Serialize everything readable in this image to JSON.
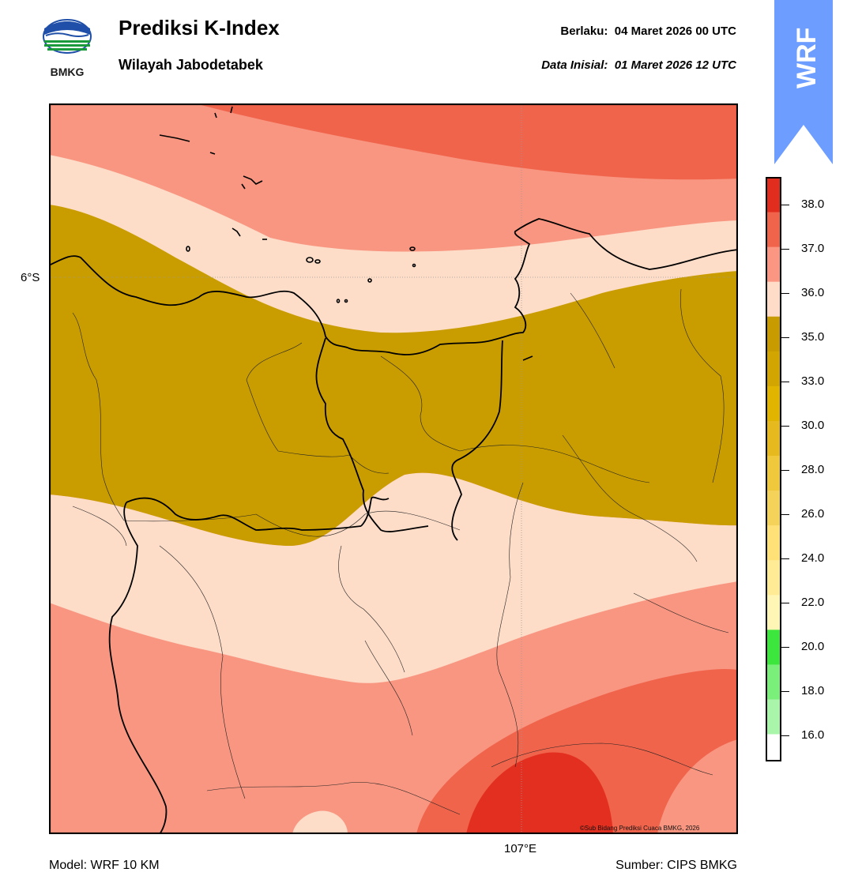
{
  "header": {
    "title": "Prediksi K-Index",
    "subtitle": "Wilayah Jabodetabek",
    "valid_label": "Berlaku:",
    "valid_value": "04 Maret 2026 00 UTC",
    "init_label": "Data Inisial:",
    "init_value": "01 Maret 2026 12 UTC"
  },
  "logo": {
    "icon": "bmkg-logo-icon",
    "text": "BMKG"
  },
  "ribbon": {
    "text": "WRF",
    "color": "#6d9dff"
  },
  "map": {
    "lat_label": "6°S",
    "lon_label": "107°E",
    "credit": "©Sub Bidang Prediksi Cuaca BMKG, 2026"
  },
  "footer": {
    "model": "Model: WRF 10 KM",
    "source": "Sumber: CIPS BMKG"
  },
  "colorbar": {
    "ticks": [
      "16.0",
      "18.0",
      "20.0",
      "22.0",
      "24.0",
      "26.0",
      "28.0",
      "30.0",
      "33.0",
      "35.0",
      "36.0",
      "37.0",
      "38.0"
    ],
    "colors_bottom_to_top": [
      "#ffffff",
      "#a9f5a9",
      "#7af07a",
      "#3ce63c",
      "#fff5b4",
      "#ffeb96",
      "#ffe178",
      "#f5d25a",
      "#f0c83c",
      "#e6b91e",
      "#e1b400",
      "#d2a500",
      "#c89b00",
      "#ffdcc8",
      "#fa9682",
      "#f0644b",
      "#e12d1e"
    ],
    "zone_colors": {
      "k30_35": "#c99d00",
      "k35_36": "#fddcc8",
      "k36_37": "#f99681",
      "k37_38": "#f0644c",
      "k38_up": "#e32f1f"
    }
  }
}
